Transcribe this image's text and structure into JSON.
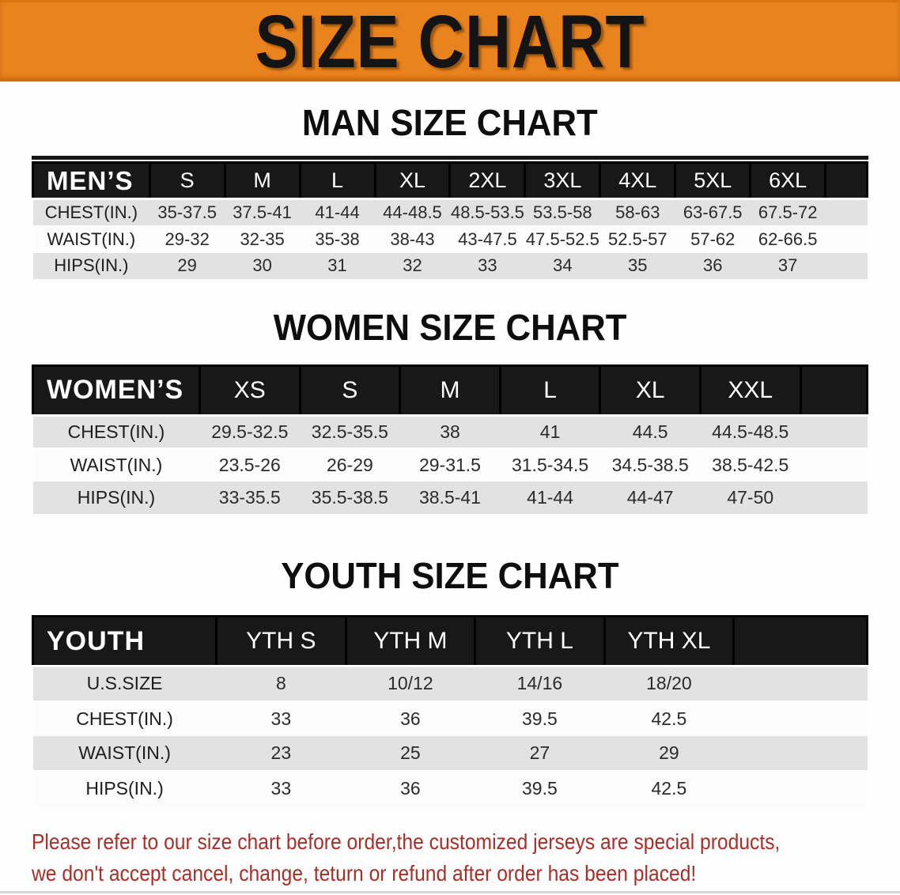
{
  "banner": {
    "title": "SIZE CHART"
  },
  "colors": {
    "banner_orange": "#e8831e",
    "table_header_black": "#181818",
    "row_gray": "#e2e2e2",
    "row_white": "#fcfcfc",
    "note_red": "#a5302a"
  },
  "sections": [
    {
      "heading": "MAN SIZE CHART",
      "table": {
        "label": "MEN’S",
        "columns": [
          "S",
          "M",
          "L",
          "XL",
          "2XL",
          "3XL",
          "4XL",
          "5XL",
          "6XL"
        ],
        "rows": [
          {
            "label": "CHEST(IN.)",
            "values": [
              "35-37.5",
              "37.5-41",
              "41-44",
              "44-48.5",
              "48.5-53.5",
              "53.5-58",
              "58-63",
              "63-67.5",
              "67.5-72"
            ]
          },
          {
            "label": "WAIST(IN.)",
            "values": [
              "29-32",
              "32-35",
              "35-38",
              "38-43",
              "43-47.5",
              "47.5-52.5",
              "52.5-57",
              "57-62",
              "62-66.5"
            ]
          },
          {
            "label": "HIPS(IN.)",
            "values": [
              "29",
              "30",
              "31",
              "32",
              "33",
              "34",
              "35",
              "36",
              "37"
            ]
          }
        ]
      }
    },
    {
      "heading": "WOMEN SIZE CHART",
      "table": {
        "label": "WOMEN’S",
        "columns": [
          "XS",
          "S",
          "M",
          "L",
          "XL",
          "XXL"
        ],
        "rows": [
          {
            "label": "CHEST(IN.)",
            "values": [
              "29.5-32.5",
              "32.5-35.5",
              "38",
              "41",
              "44.5",
              "44.5-48.5"
            ]
          },
          {
            "label": "WAIST(IN.)",
            "values": [
              "23.5-26",
              "26-29",
              "29-31.5",
              "31.5-34.5",
              "34.5-38.5",
              "38.5-42.5"
            ]
          },
          {
            "label": "HIPS(IN.)",
            "values": [
              "33-35.5",
              "35.5-38.5",
              "38.5-41",
              "41-44",
              "44-47",
              "47-50"
            ]
          }
        ]
      }
    },
    {
      "heading": "YOUTH SIZE CHART",
      "table": {
        "label": "YOUTH",
        "columns": [
          "YTH S",
          "YTH M",
          "YTH L",
          "YTH XL"
        ],
        "rows": [
          {
            "label": "U.S.SIZE",
            "values": [
              "8",
              "10/12",
              "14/16",
              "18/20"
            ]
          },
          {
            "label": "CHEST(IN.)",
            "values": [
              "33",
              "36",
              "39.5",
              "42.5"
            ]
          },
          {
            "label": "WAIST(IN.)",
            "values": [
              "23",
              "25",
              "27",
              "29"
            ]
          },
          {
            "label": "HIPS(IN.)",
            "values": [
              "33",
              "36",
              "39.5",
              "42.5"
            ]
          }
        ]
      }
    }
  ],
  "note": {
    "line1": "Please refer to our size chart before order,the customized jerseys are special products,",
    "line2": "we don't accept cancel, change, teturn or refund after order has been placed!"
  }
}
